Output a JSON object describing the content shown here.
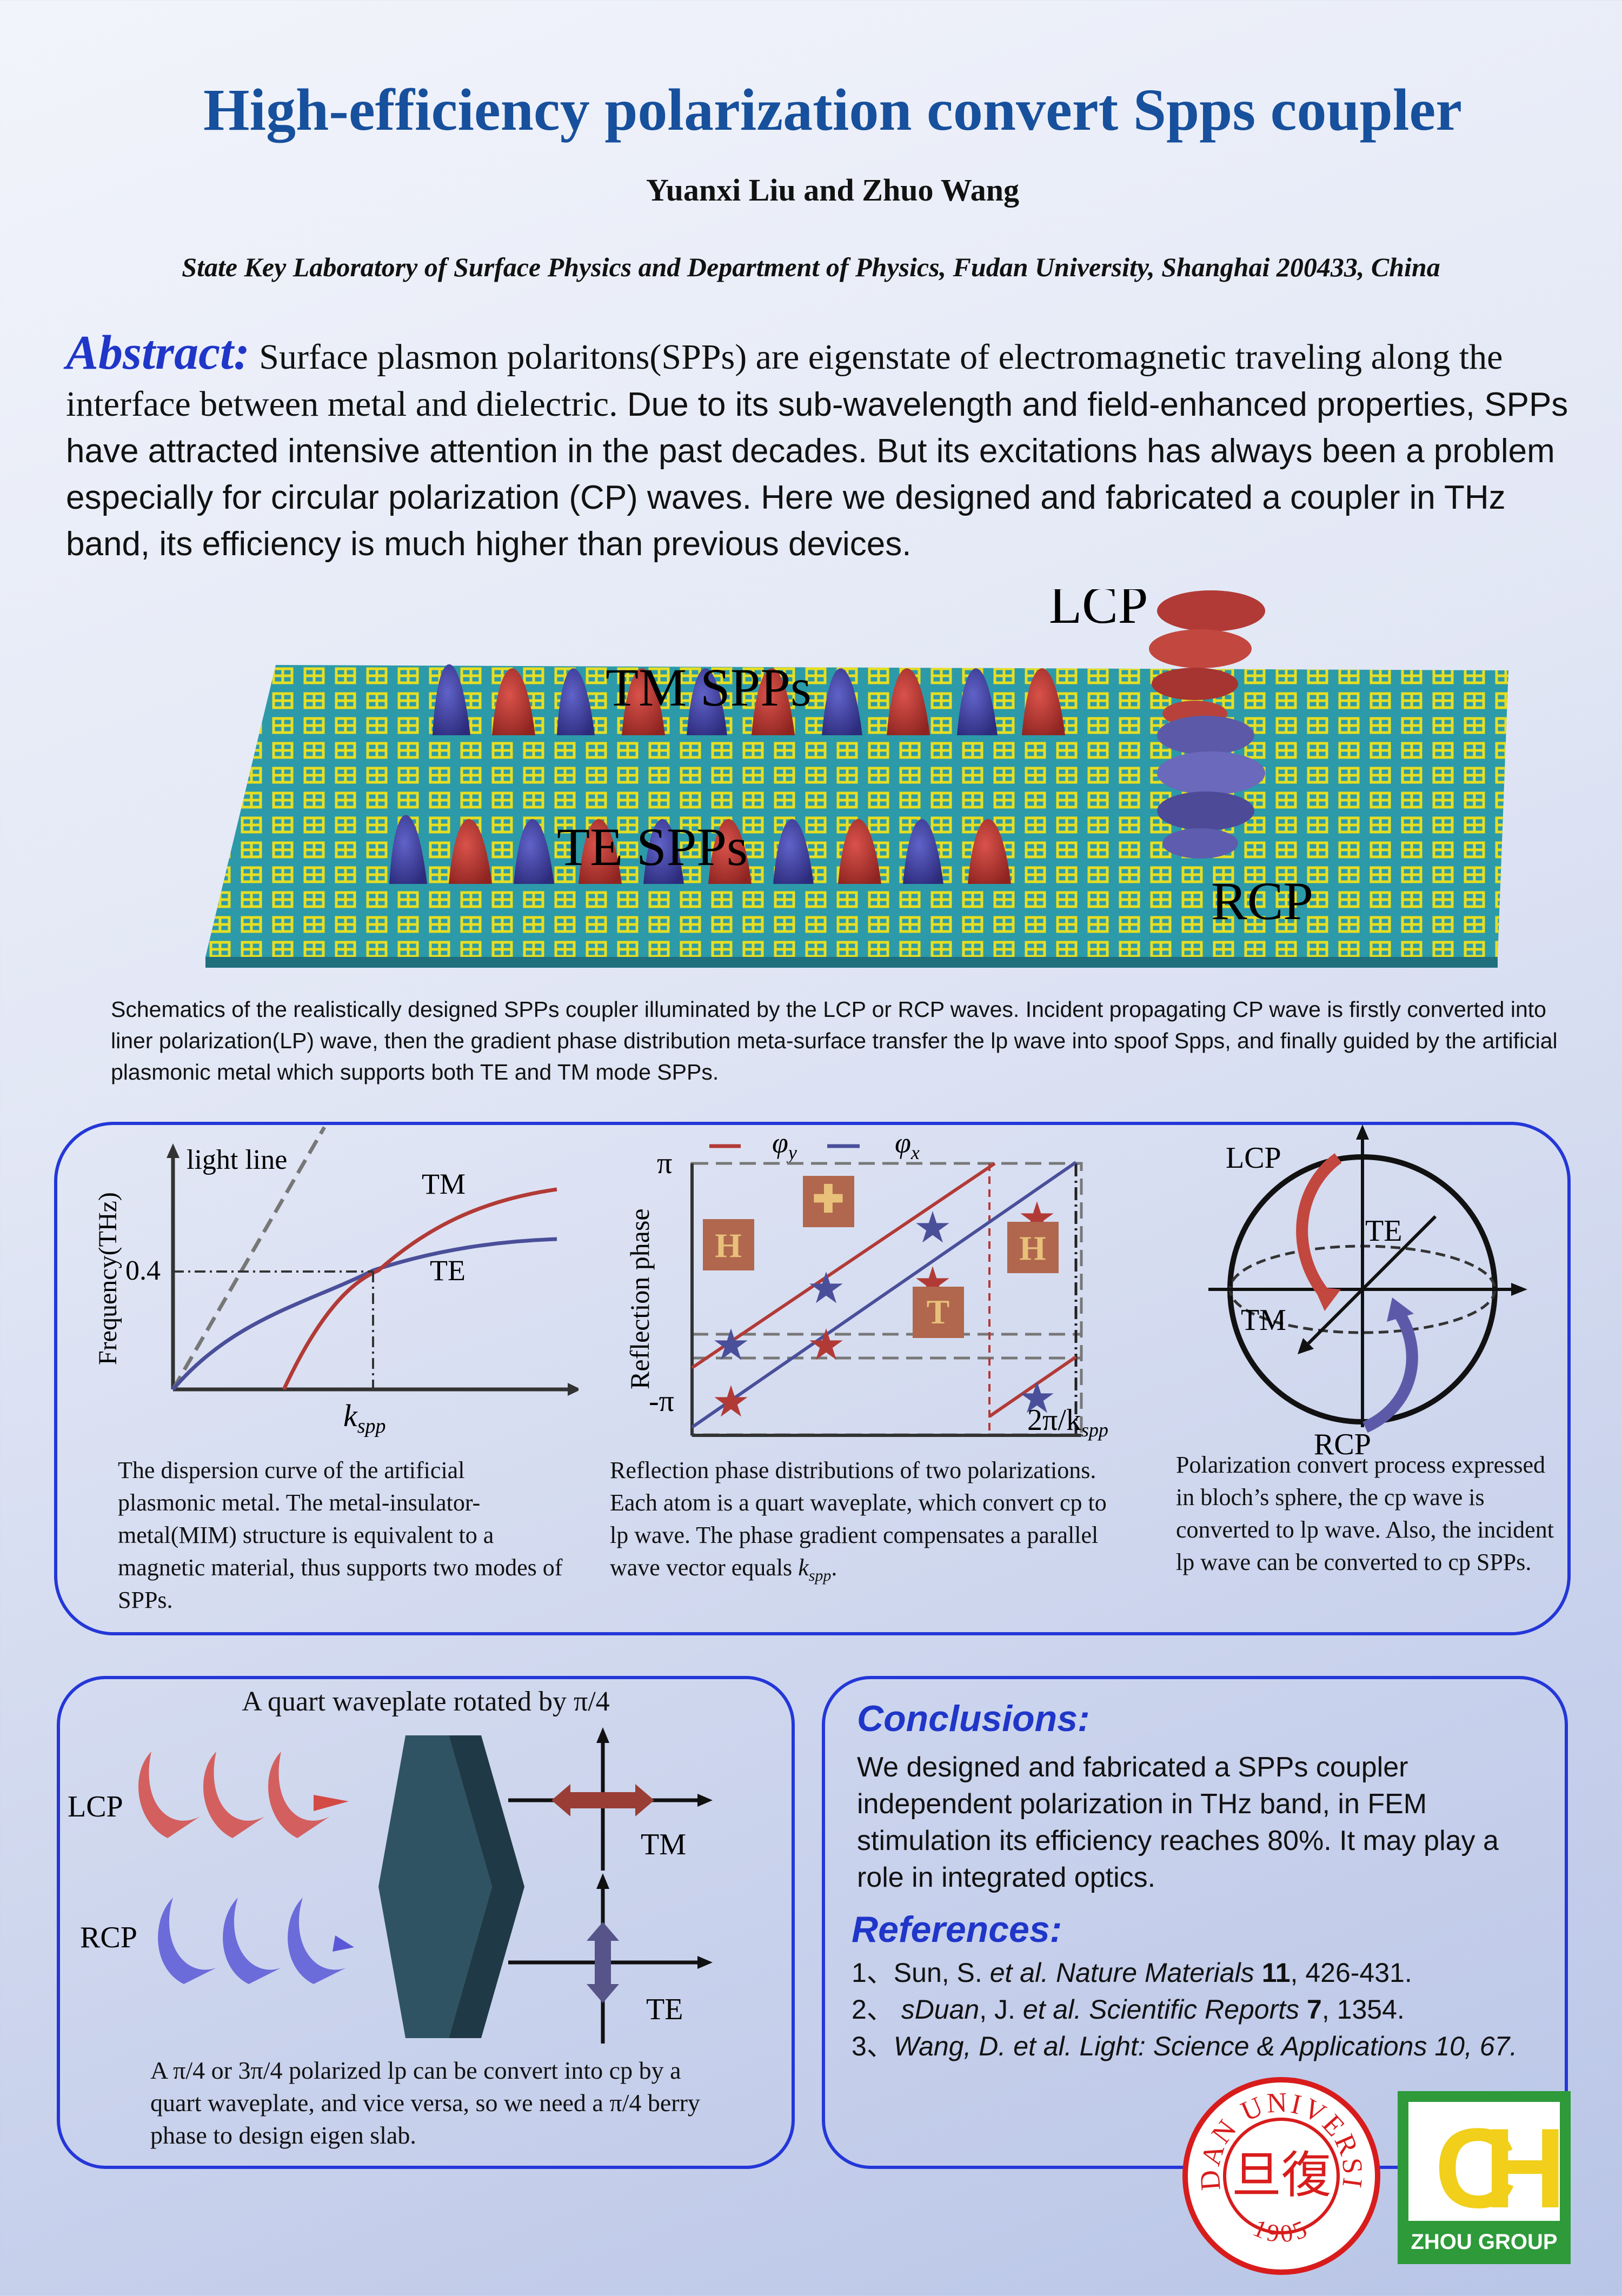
{
  "header": {
    "title": "High-efficiency polarization convert Spps coupler",
    "authors": "Yuanxi Liu and Zhuo Wang",
    "affiliation": "State Key Laboratory of Surface Physics and Department of Physics, Fudan University, Shanghai 200433, China"
  },
  "abstract": {
    "heading": "Abstract:",
    "first_line": "Surface plasmon polaritons(SPPs) are eigenstate of electromagnetic traveling along the interface between metal and dielectric.",
    "rest": "Due to its sub-wavelength and field-enhanced properties, SPPs have attracted intensive attention in the past decades. But its excitations has always been a problem especially for circular polarization (CP) waves. Here we designed and fabricated a coupler in THz band, its efficiency is much higher than previous devices."
  },
  "schematic": {
    "labels": {
      "lcp": "LCP",
      "rcp": "RCP",
      "tm": "TM SPPs",
      "te": "TE SPPs"
    },
    "caption": "Schematics of the realistically designed SPPs coupler illuminated by the LCP or RCP waves. Incident propagating CP wave is firstly converted into liner polarization(LP) wave, then the gradient phase distribution meta-surface transfer the lp wave into spoof Spps, and finally guided by the artificial plasmonic metal which supports both TE and TM mode SPPs."
  },
  "fig_dispersion": {
    "ylabel": "Frequency(THz)",
    "xlabel": "k",
    "xlabel_sub": "spp",
    "light_line": "light line",
    "tick_04": "0.4",
    "tm": "TM",
    "te": "TE",
    "caption": "The dispersion curve of the artificial plasmonic metal. The metal-insulator-metal(MIM) structure is equivalent to a magnetic material, thus supports two modes of SPPs."
  },
  "fig_phase": {
    "ylabel": "Reflection phase",
    "y_top": "π",
    "y_bottom": "-π",
    "x_right": "2π/k",
    "x_right_sub": "spp",
    "legend": {
      "phi_y": "φ",
      "phi_y_sub": "y",
      "phi_x": "φ",
      "phi_x_sub": "x"
    },
    "caption_a": "Reflection phase distributions of two polarizations. Each atom is a quart waveplate, which convert cp to lp wave. The phase gradient compensates a parallel wave vector equals ",
    "caption_k": "k",
    "caption_sub": "spp",
    "caption_end": "."
  },
  "fig_bloch": {
    "lcp": "LCP",
    "rcp": "RCP",
    "te": "TE",
    "tm": "TM",
    "caption": "Polarization convert process expressed in bloch’s sphere, the cp wave is converted to lp wave. Also, the incident lp wave can be converted to cp SPPs."
  },
  "waveplate": {
    "title": "A quart waveplate rotated by π/4",
    "lcp": "LCP",
    "rcp": "RCP",
    "tm": "TM",
    "te": "TE",
    "caption": "A π/4 or 3π/4  polarized lp can be convert into cp by a  quart waveplate, and vice versa, so we need a π/4 berry phase to design eigen slab."
  },
  "conclusions": {
    "heading": "Conclusions:",
    "text": "We designed and fabricated a SPPs coupler independent polarization in THz band, in FEM stimulation its efficiency reaches 80%. It may play a role in integrated optics."
  },
  "references": {
    "heading": "References:",
    "r1_pre": "1、Sun, S. ",
    "r1_it": "et al. Nature Materials ",
    "r1_b": "11",
    "r1_post": ", 426-431.",
    "r2_pre": "2、 ",
    "r2_it1": "sDuan",
    "r2_mid": ", J. ",
    "r2_it2": "et al. Scientific Reports ",
    "r2_b": "7",
    "r2_post": ", 1354.",
    "r3_pre": "3、",
    "r3_it": "Wang, D. et al. Light: Science & Applications 10, 67."
  },
  "logos": {
    "fudan_ring": "FUDAN UNIVERSITY",
    "fudan_year": "1905",
    "fudan_center": "旦復",
    "zhou_letters": "CH",
    "zhou_name": "ZHOU GROUP"
  },
  "colors": {
    "title": "#17509c",
    "accent": "#1f36c9",
    "red": "#b23a36",
    "blue": "#4a4f9a"
  }
}
